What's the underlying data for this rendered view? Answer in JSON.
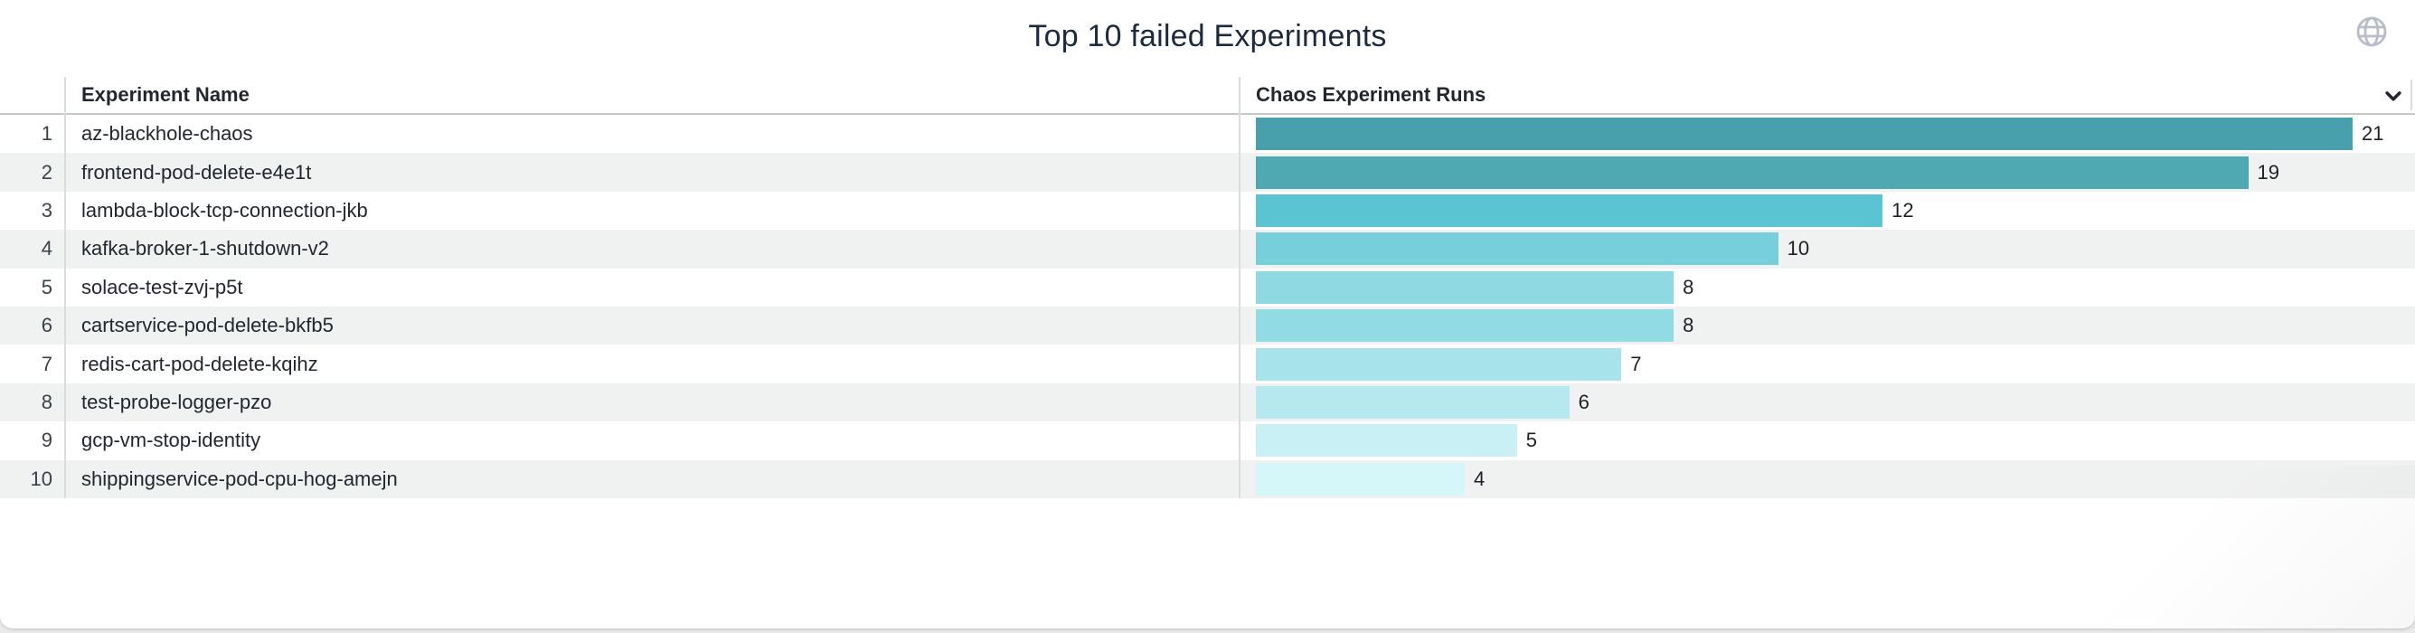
{
  "widget": {
    "title": "Top 10 failed Experiments"
  },
  "icons": {
    "top_right": "globe-icon",
    "header_dropdown": "chevron-down-icon"
  },
  "colors": {
    "title_text": "#1b2a3f",
    "header_text": "#22272f",
    "row_stripe": "#f0f1f1",
    "header_border": "#c5c9cd",
    "column_divider": "#d9dce0",
    "globe_icon": "#b7bec9",
    "chevron_icon": "#20262e"
  },
  "table": {
    "columns": [
      {
        "label": "Experiment Name"
      },
      {
        "label": "Chaos Experiment Runs"
      }
    ],
    "rows": [
      {
        "index": 1,
        "name": "az-blackhole-chaos",
        "runs": 21,
        "bar_color": "#47a0ab"
      },
      {
        "index": 2,
        "name": "frontend-pod-delete-e4e1t",
        "runs": 19,
        "bar_color": "#4fa9b3"
      },
      {
        "index": 3,
        "name": "lambda-block-tcp-connection-jkb",
        "runs": 12,
        "bar_color": "#5bc4d2"
      },
      {
        "index": 4,
        "name": "kafka-broker-1-shutdown-v2",
        "runs": 10,
        "bar_color": "#78cfdc"
      },
      {
        "index": 5,
        "name": "solace-test-zvj-p5t",
        "runs": 8,
        "bar_color": "#8fdae2"
      },
      {
        "index": 6,
        "name": "cartservice-pod-delete-bkfb5",
        "runs": 8,
        "bar_color": "#91dce4"
      },
      {
        "index": 7,
        "name": "redis-cart-pod-delete-kqihz",
        "runs": 7,
        "bar_color": "#a6e3ea"
      },
      {
        "index": 8,
        "name": "test-probe-logger-pzo",
        "runs": 6,
        "bar_color": "#b5e9ef"
      },
      {
        "index": 9,
        "name": "gcp-vm-stop-identity",
        "runs": 5,
        "bar_color": "#c8f0f5"
      },
      {
        "index": 10,
        "name": "shippingservice-pod-cpu-hog-amejn",
        "runs": 4,
        "bar_color": "#d6f7fa"
      }
    ]
  },
  "chart_data": {
    "type": "bar",
    "orientation": "horizontal",
    "title": "Top 10 failed Experiments",
    "series_label": "Chaos Experiment Runs",
    "categories": [
      "az-blackhole-chaos",
      "frontend-pod-delete-e4e1t",
      "lambda-block-tcp-connection-jkb",
      "kafka-broker-1-shutdown-v2",
      "solace-test-zvj-p5t",
      "cartservice-pod-delete-bkfb5",
      "redis-cart-pod-delete-kqihz",
      "test-probe-logger-pzo",
      "gcp-vm-stop-identity",
      "shippingservice-pod-cpu-hog-amejn"
    ],
    "values": [
      21,
      19,
      12,
      10,
      8,
      8,
      7,
      6,
      5,
      4
    ],
    "xlim": [
      0,
      21
    ],
    "grid": false,
    "data_labels": true,
    "bar_colors": [
      "#47a0ab",
      "#4fa9b3",
      "#5bc4d2",
      "#78cfdc",
      "#8fdae2",
      "#91dce4",
      "#a6e3ea",
      "#b5e9ef",
      "#c8f0f5",
      "#d6f7fa"
    ]
  }
}
